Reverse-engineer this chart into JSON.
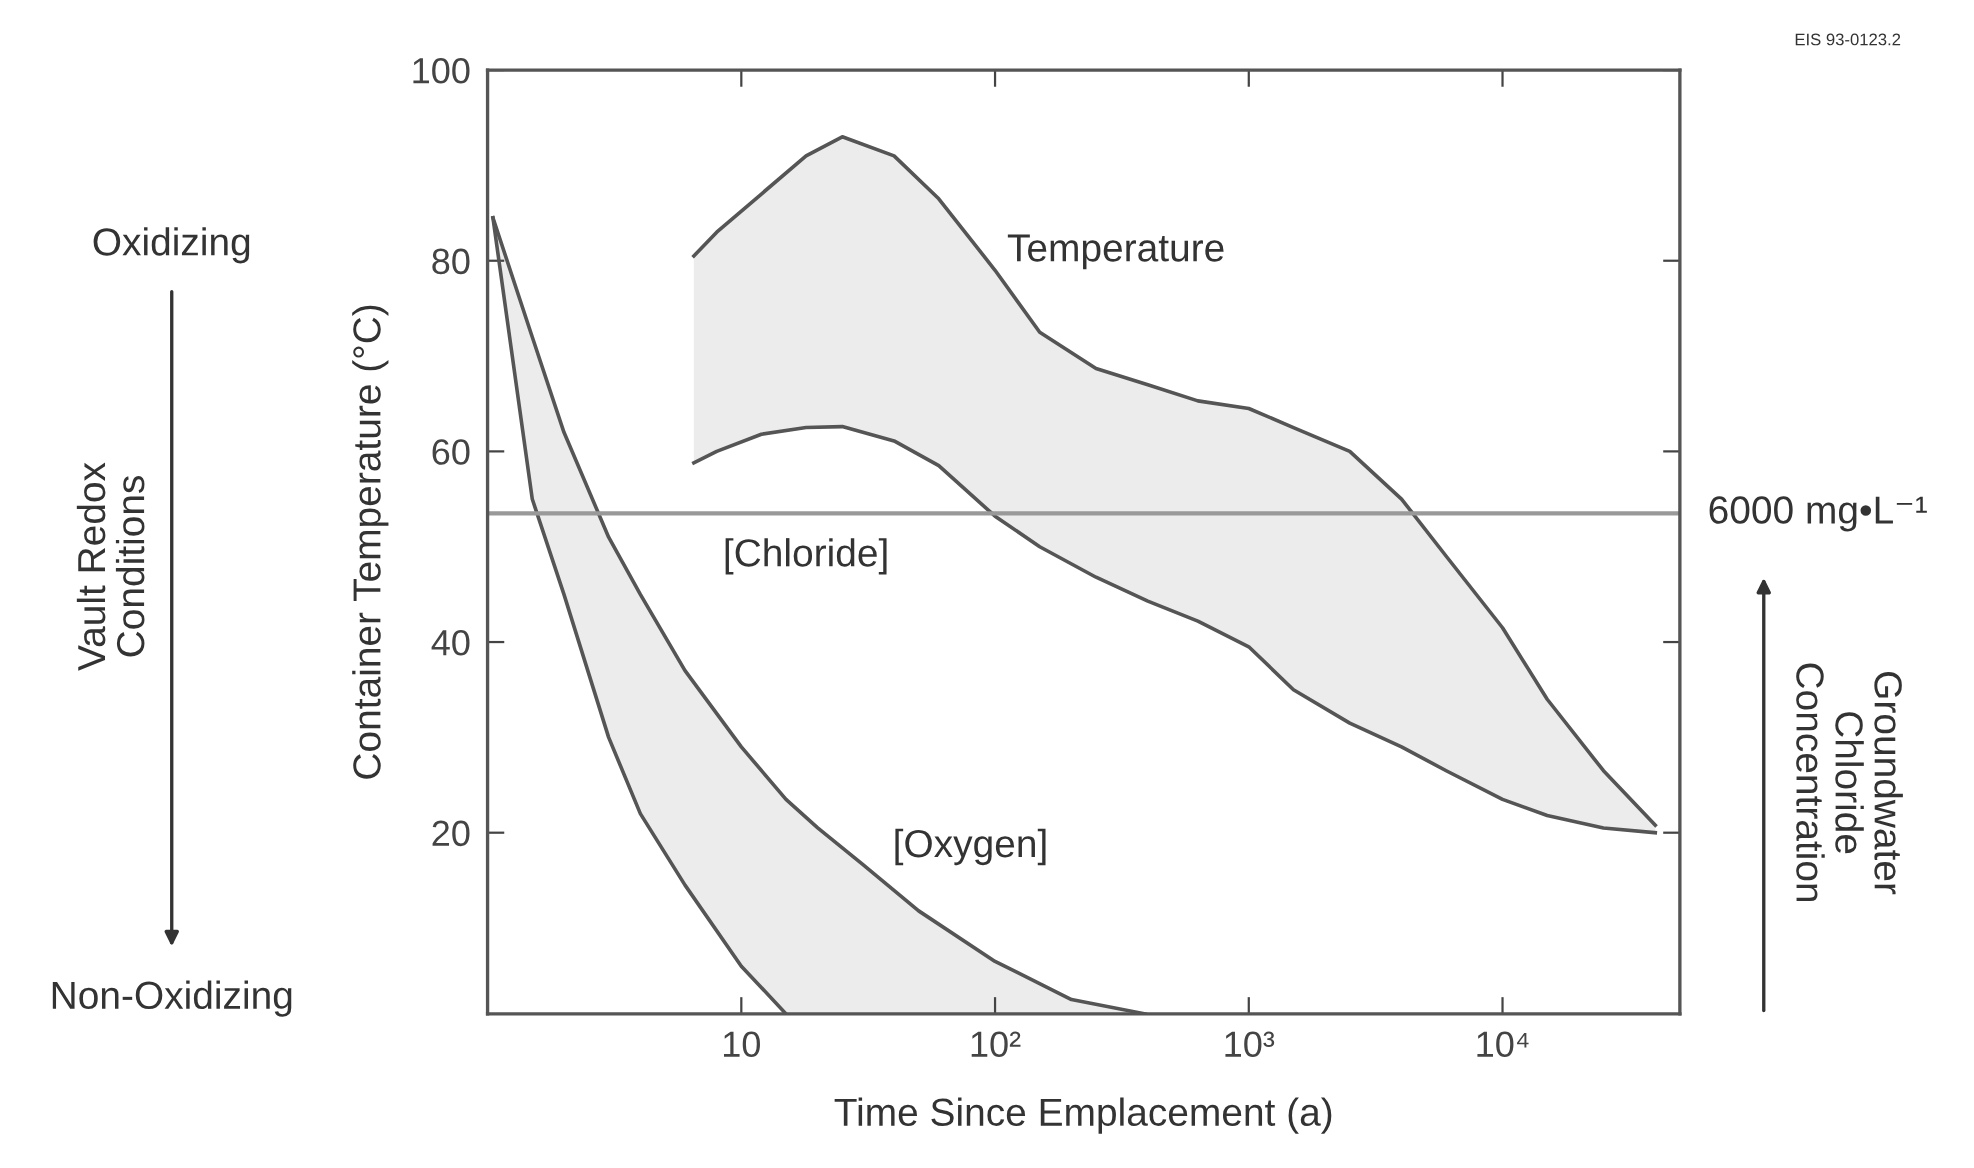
{
  "chart_data": {
    "type": "line",
    "xlabel": "Time Since Emplacement (a)",
    "ylabel": "Container Temperature (°C)",
    "log": "x",
    "xlim": [
      1,
      50000
    ],
    "ylim": [
      1,
      100
    ],
    "xticks": [
      10,
      {
        "value": 100,
        "label": "10²"
      },
      {
        "value": 1000,
        "label": "10³"
      },
      {
        "value": 10000,
        "label": "10⁴"
      }
    ],
    "yticks": [
      20,
      40,
      60,
      80,
      100
    ],
    "grid": false,
    "legend": false,
    "marker": "none",
    "line_style": "solid",
    "series": [
      {
        "color": "#555555",
        "x": [
          6.5,
          8,
          12,
          18,
          25,
          40,
          60,
          100,
          150,
          250,
          400,
          630,
          1000,
          1500,
          2500,
          4000,
          6000,
          10000,
          15000,
          25000,
          40000
        ],
        "values": [
          58.8,
          60,
          61.8,
          62.5,
          62.6,
          61.1,
          58.5,
          53.2,
          50,
          46.8,
          44.3,
          42.2,
          39.5,
          35,
          31.5,
          29,
          26.5,
          23.5,
          21.8,
          20.5,
          20
        ]
      },
      {
        "color": "#555555",
        "x": [
          6.5,
          8,
          12,
          18,
          25,
          40,
          60,
          100,
          150,
          250,
          400,
          630,
          1000,
          1500,
          2500,
          4000,
          6000,
          10000,
          15000,
          25000,
          40000
        ],
        "values": [
          80.5,
          83,
          87,
          91,
          93,
          91,
          86.5,
          79,
          72.5,
          68.7,
          67,
          65.3,
          64.5,
          62.5,
          60,
          55,
          49,
          41.5,
          34,
          26.5,
          20.8
        ],
        "upper": [
          80.5,
          83,
          87,
          91,
          93,
          91,
          86.5,
          79,
          72.5,
          68.7,
          67,
          65.3,
          64.5,
          62.5,
          60,
          55,
          49,
          41.5,
          34,
          26.5,
          20.8
        ],
        "lower": [
          58.8,
          60,
          61.8,
          62.5,
          62.6,
          61.1,
          58.5,
          53.2,
          50,
          46.8,
          44.3,
          42.2,
          39.5,
          35,
          31.5,
          29,
          26.5,
          23.5,
          21.8,
          20.5,
          20
        ]
      },
      {
        "color": "#555555",
        "x": [
          1.05,
          1.5,
          2,
          3,
          4,
          6,
          10,
          15
        ],
        "values": [
          84.5,
          55,
          45,
          30,
          22,
          14.5,
          6,
          1
        ]
      },
      {
        "color": "#555555",
        "x": [
          1.05,
          1.5,
          2,
          3,
          4,
          6,
          10,
          15,
          20,
          30,
          50,
          100,
          200,
          390
        ],
        "values": [
          84.5,
          72,
          62,
          51,
          45,
          37,
          29,
          23.5,
          20.5,
          16.7,
          11.8,
          6.5,
          2.5,
          1
        ],
        "upper": [
          84.5,
          72,
          62,
          51,
          45,
          37,
          29,
          23.5,
          20.5,
          16.7,
          11.8,
          6.5,
          2.5,
          1
        ],
        "lower": [
          84.5,
          55,
          45,
          30,
          22,
          14.5,
          6,
          1,
          1,
          1,
          1,
          1,
          1,
          1
        ]
      }
    ],
    "ref_lines": [
      {
        "axis": "y",
        "value": 53.5,
        "label": "6000 mg•L⁻¹",
        "color": "#999999"
      }
    ],
    "annotations": [
      "Temperature",
      "[Chloride]",
      "[Oxygen]",
      "EIS 93-0123.2",
      "Oxidizing",
      "Vault Redox\nConditions",
      "Non-Oxidizing",
      "Groundwater\nChloride\nConcentration"
    ]
  }
}
